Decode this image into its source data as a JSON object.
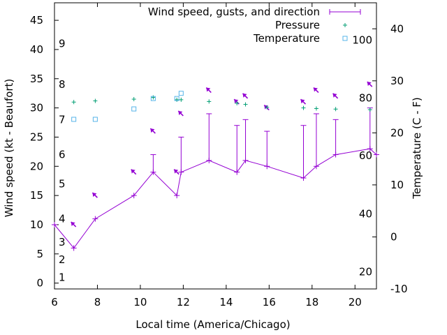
{
  "chart_data": {
    "type": "line",
    "xlabel": "Local time (America/Chicago)",
    "ylabel": "Wind speed (kt - Beaufort)",
    "y2label": "Temperature (C - F)",
    "xlim": [
      6,
      21
    ],
    "ylim": [
      -1,
      48
    ],
    "y2lim": [
      -10,
      45
    ],
    "x_ticks": [
      6,
      8,
      10,
      12,
      14,
      16,
      18,
      20
    ],
    "y_ticks": [
      0,
      5,
      10,
      15,
      20,
      25,
      30,
      35,
      40,
      45
    ],
    "y2_ticks": [
      -10,
      0,
      10,
      20,
      30,
      40
    ],
    "beaufort_labels": [
      {
        "label": "1",
        "kt": 1
      },
      {
        "label": "2",
        "kt": 4
      },
      {
        "label": "3",
        "kt": 7
      },
      {
        "label": "4",
        "kt": 11
      },
      {
        "label": "5",
        "kt": 17
      },
      {
        "label": "6",
        "kt": 22
      },
      {
        "label": "7",
        "kt": 28
      },
      {
        "label": "8",
        "kt": 34
      },
      {
        "label": "9",
        "kt": 41
      }
    ],
    "fahrenheit_labels": [
      {
        "label": "20",
        "c": -6.7
      },
      {
        "label": "40",
        "c": 4.4
      },
      {
        "label": "60",
        "c": 15.6
      },
      {
        "label": "80",
        "c": 26.7
      },
      {
        "label": "100",
        "c": 37.8
      }
    ],
    "series": [
      {
        "name": "Wind speed, gusts, and direction",
        "color": "#9400d3",
        "x": [
          6.0,
          6.9,
          7.9,
          9.7,
          10.6,
          11.7,
          11.9,
          13.2,
          14.5,
          14.9,
          15.9,
          17.6,
          18.2,
          19.1,
          20.7,
          21.0
        ],
        "wind": [
          10,
          6,
          11,
          15,
          19,
          15,
          19,
          21,
          19,
          21,
          20,
          18,
          20,
          22,
          23,
          22
        ],
        "gust": [
          null,
          null,
          null,
          null,
          22,
          null,
          25,
          29,
          27,
          28,
          26,
          27,
          29,
          28,
          30,
          null
        ],
        "dir_x": [
          6.9,
          7.9,
          9.7,
          10.6,
          11.7,
          11.9,
          13.2,
          14.5,
          14.9,
          15.9,
          17.6,
          18.2,
          19.1,
          20.7
        ],
        "dir_y": [
          10,
          15,
          19,
          26,
          19,
          29,
          33,
          31,
          32,
          30,
          31,
          33,
          32,
          34
        ]
      },
      {
        "name": "Pressure",
        "color": "#009e73",
        "x": [
          6.9,
          7.9,
          9.7,
          10.6,
          11.7,
          11.9,
          13.2,
          14.5,
          14.9,
          15.9,
          17.6,
          18.2,
          19.1,
          20.7
        ],
        "y": [
          31,
          31.2,
          31.5,
          31.8,
          31.4,
          31.4,
          31.1,
          30.8,
          30.6,
          30.1,
          30,
          29.9,
          29.8,
          29.7
        ]
      },
      {
        "name": "Temperature",
        "color": "#56b4e9",
        "x": [
          6.9,
          7.9,
          9.7,
          10.6,
          11.7,
          11.9
        ],
        "y": [
          22.6,
          22.6,
          24.6,
          26.6,
          26.6,
          27.6
        ]
      }
    ]
  }
}
